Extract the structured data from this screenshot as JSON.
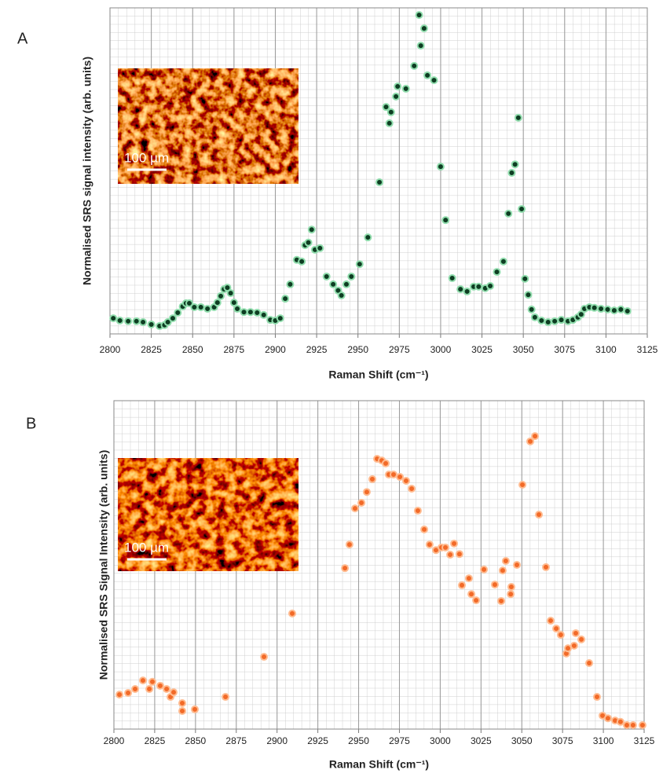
{
  "chart_data": [
    {
      "type": "scatter",
      "panel_label": "A",
      "xlabel": "Raman Shift (cm⁻¹)",
      "ylabel": "Normalised SRS signal intensity (arb. units)",
      "inset_scale_label": "100 µm",
      "color": "#0e3d22",
      "edge_color": "#8fdcac",
      "xlim": [
        2800,
        3125
      ],
      "xticks": [
        2800,
        2825,
        2850,
        2875,
        2900,
        2925,
        2950,
        2975,
        3000,
        3025,
        3050,
        3075,
        3100,
        3125
      ],
      "ylim": [
        0,
        100
      ],
      "grid": true,
      "x": [
        2802,
        2806,
        2811,
        2816,
        2820,
        2825,
        2830,
        2833,
        2835,
        2838,
        2841,
        2844,
        2846,
        2848,
        2851,
        2855,
        2859,
        2863,
        2865,
        2867,
        2869,
        2871,
        2873,
        2875,
        2877,
        2881,
        2885,
        2889,
        2893,
        2897,
        2900,
        2903,
        2906,
        2909,
        2913,
        2916,
        2918,
        2920,
        2922,
        2924,
        2927,
        2931,
        2935,
        2938,
        2940,
        2943,
        2946,
        2951,
        2956,
        2963,
        2967,
        2969,
        2970,
        2973,
        2974,
        2979,
        2984,
        2987,
        2988,
        2990,
        2992,
        2996,
        3000,
        3003,
        3007,
        3012,
        3016,
        3020,
        3023,
        3027,
        3030,
        3034,
        3038,
        3041,
        3043,
        3045,
        3047,
        3049,
        3051,
        3053,
        3055,
        3057,
        3061,
        3065,
        3069,
        3073,
        3077,
        3080,
        3083,
        3085,
        3087,
        3090,
        3093,
        3097,
        3101,
        3105,
        3109,
        3113
      ],
      "values": [
        4.8,
        4.1,
        3.9,
        3.9,
        3.6,
        2.9,
        2.4,
        2.7,
        3.6,
        4.8,
        6.5,
        8.4,
        9.4,
        9.4,
        8.2,
        8.2,
        7.7,
        8.2,
        9.6,
        11.6,
        13.7,
        14.2,
        12.5,
        9.6,
        7.7,
        6.7,
        6.7,
        6.5,
        5.8,
        4.3,
        4.1,
        4.8,
        10.8,
        15.2,
        22.7,
        22.2,
        27.2,
        28.0,
        32.0,
        25.8,
        26.3,
        17.6,
        15.2,
        13.3,
        11.8,
        15.2,
        17.6,
        21.4,
        29.6,
        46.5,
        69.6,
        64.6,
        68.0,
        72.8,
        75.9,
        75.2,
        82.2,
        97.8,
        88.4,
        93.7,
        79.3,
        77.8,
        51.3,
        34.9,
        17.1,
        13.7,
        13.0,
        14.5,
        14.5,
        14.0,
        14.7,
        19.0,
        22.2,
        36.9,
        49.4,
        52.0,
        66.3,
        38.3,
        16.9,
        12.0,
        7.5,
        5.1,
        4.1,
        3.6,
        3.9,
        4.3,
        3.9,
        4.3,
        5.1,
        6.0,
        7.7,
        8.2,
        8.0,
        7.7,
        7.5,
        7.2,
        7.5,
        7.0
      ]
    },
    {
      "type": "scatter",
      "panel_label": "B",
      "xlabel": "Raman Shift (cm⁻¹)",
      "ylabel": "Normalised SRS Signal Intensity (arb. units)",
      "inset_scale_label": "100 µm",
      "color": "#f26a28",
      "edge_color": "#ffbb90",
      "xlim": [
        2800,
        3125
      ],
      "xticks": [
        2800,
        2825,
        2850,
        2875,
        2900,
        2925,
        2950,
        2975,
        3000,
        3025,
        3050,
        3075,
        3100,
        3125
      ],
      "ylim": [
        0,
        100
      ],
      "grid": true,
      "x": [
        2803.4,
        2808.7,
        2813,
        2817.8,
        2821.7,
        2823.6,
        2828.4,
        2832.3,
        2834.7,
        2836.6,
        2841.9,
        2841.9,
        2849.6,
        2868.4,
        2892,
        2909.3,
        2941.6,
        2944.4,
        2947.8,
        2951.7,
        2955,
        2958.4,
        2961.3,
        2964.2,
        2966.6,
        2968.5,
        2971.4,
        2975.3,
        2979.1,
        2982.5,
        2986.3,
        2990.2,
        2993.5,
        2997.4,
        3000.8,
        3003.2,
        3006.1,
        3008.5,
        3011.8,
        3013.3,
        3017.6,
        3019.1,
        3022,
        3026.8,
        3033.5,
        3037.4,
        3038.3,
        3040.2,
        3043.2,
        3043.6,
        3047,
        3050.4,
        3055.2,
        3058.1,
        3060.5,
        3064.8,
        3067.7,
        3071.1,
        3073.9,
        3077.3,
        3078.3,
        3082.1,
        3083.1,
        3086.5,
        3091.3,
        3096.1,
        3099.5,
        3102.8,
        3107.2,
        3110.5,
        3114.4,
        3118.2,
        3124
      ],
      "values": [
        10.5,
        11.0,
        12.2,
        14.8,
        12.2,
        14.4,
        13.2,
        12.2,
        9.8,
        11.2,
        7.9,
        5.5,
        6.0,
        9.8,
        22.0,
        35.2,
        49.0,
        56.2,
        67.2,
        68.9,
        72.2,
        76.1,
        82.3,
        81.8,
        80.9,
        77.5,
        77.5,
        76.8,
        75.6,
        73.2,
        66.5,
        60.8,
        56.2,
        54.5,
        55.3,
        55.3,
        53.1,
        56.5,
        53.3,
        43.8,
        45.9,
        41.1,
        39.2,
        48.6,
        44.0,
        39.0,
        48.3,
        51.2,
        41.1,
        43.3,
        50.0,
        74.4,
        87.6,
        89.2,
        65.3,
        49.3,
        33.0,
        30.6,
        28.7,
        23.0,
        24.6,
        25.4,
        29.2,
        27.3,
        20.1,
        9.8,
        4.1,
        3.3,
        2.6,
        2.2,
        1.2,
        1.2,
        1.2
      ]
    }
  ]
}
